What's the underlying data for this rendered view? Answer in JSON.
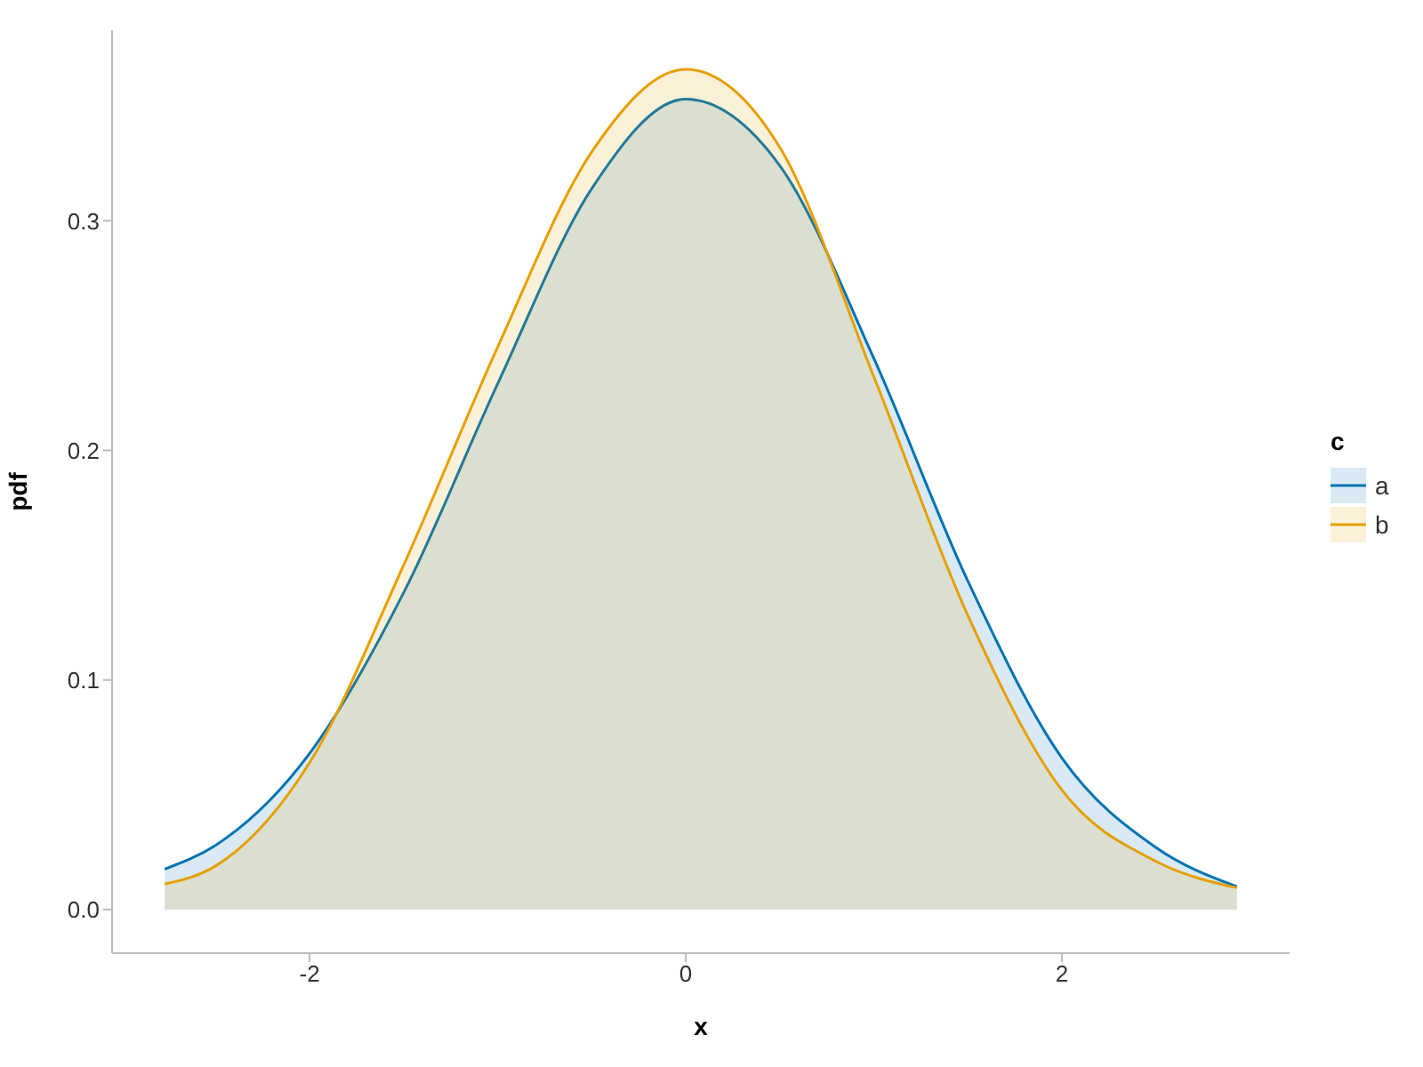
{
  "chart_data": {
    "type": "area",
    "xlabel": "x",
    "ylabel": "pdf",
    "legend_title": "c",
    "legend": "right",
    "grid": false,
    "x": [
      -2.77,
      -2.5,
      -2,
      -1.5,
      -1,
      -0.5,
      0,
      0.5,
      1,
      1.5,
      2,
      2.5,
      2.93
    ],
    "xlim": [
      -3.05,
      3.21
    ],
    "xticks": [
      -2,
      0,
      2
    ],
    "ylim": [
      -0.019,
      0.383
    ],
    "yticks": [
      {
        "value": 0,
        "label": "0.0"
      },
      0.1,
      0.2,
      0.3
    ],
    "series": [
      {
        "name": "a",
        "color": "#0173b2",
        "values": [
          0.0176,
          0.028,
          0.068,
          0.138,
          0.229,
          0.314,
          0.353,
          0.324,
          0.24,
          0.143,
          0.066,
          0.027,
          0.01
        ]
      },
      {
        "name": "b",
        "color": "#e69f00",
        "values": [
          0.0111,
          0.019,
          0.064,
          0.15,
          0.245,
          0.33,
          0.366,
          0.332,
          0.232,
          0.128,
          0.052,
          0.021,
          0.0095
        ]
      }
    ]
  }
}
